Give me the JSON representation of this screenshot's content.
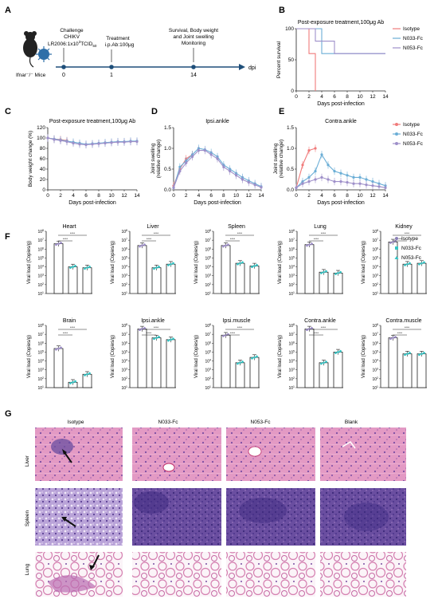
{
  "colors": {
    "isotype": "#f07b7b",
    "n033": "#6baed6",
    "n053": "#9e8fc9",
    "teal": "#35c3c3",
    "he_pink": "#d77fb0",
    "he_purple": "#6c4fa5"
  },
  "panel_labels": {
    "A": "A",
    "B": "B",
    "C": "C",
    "D": "D",
    "E": "E",
    "F": "F",
    "G": "G"
  },
  "timeline": {
    "challenge_line1": "Challenge",
    "challenge_line2": "CHIKV",
    "challenge_line3": "LR2006:1x10",
    "challenge_sup": "3",
    "challenge_unit": "TCID",
    "challenge_sub": "50",
    "treatment_line1": "Treatment",
    "treatment_line2": "i.p.Ab:100μg",
    "monitor_line1": "Survival, Body weight",
    "monitor_line2": "and Joint swelling",
    "monitor_line3": "Monitoring",
    "dpi": "dpi",
    "mice": "Ifnar⁻/⁻ Mice",
    "days": [
      "0",
      "1",
      "14"
    ]
  },
  "legend": {
    "isotype": "Isotype",
    "n033": "N033-Fc",
    "n053": "N053-Fc"
  },
  "chart_data": [
    {
      "id": "B",
      "type": "line",
      "title": "Post-exposure treatment,100μg Ab",
      "xlabel": "Days post-infection",
      "ylabel": "Percent survival",
      "xticks": [
        "0",
        "2",
        "4",
        "6",
        "8",
        "10",
        "12",
        "14"
      ],
      "yticks": [
        "0",
        "50",
        "100"
      ],
      "xlim": [
        0,
        14
      ],
      "ylim": [
        0,
        100
      ],
      "series": [
        {
          "name": "Isotype",
          "x": [
            0,
            2,
            2,
            3,
            3
          ],
          "y": [
            100,
            100,
            60,
            60,
            0
          ]
        },
        {
          "name": "N033-Fc",
          "x": [
            0,
            4,
            4,
            14
          ],
          "y": [
            100,
            100,
            60,
            60
          ]
        },
        {
          "name": "N053-Fc",
          "x": [
            0,
            3,
            3,
            6,
            6,
            14
          ],
          "y": [
            100,
            100,
            80,
            80,
            60,
            60
          ]
        }
      ]
    },
    {
      "id": "C",
      "type": "line",
      "title": "Post-exposure treatment,100μg Ab",
      "xlabel": "Days post-infection",
      "ylabel": "Body weight change (%)",
      "xticks": [
        "0",
        "2",
        "4",
        "6",
        "8",
        "10",
        "12",
        "14"
      ],
      "yticks": [
        "0",
        "20",
        "40",
        "60",
        "80",
        "100",
        "120"
      ],
      "xlim": [
        0,
        14
      ],
      "ylim": [
        0,
        120
      ],
      "series": [
        {
          "name": "Isotype",
          "x": [
            0,
            1,
            2,
            3
          ],
          "y": [
            100,
            98,
            97,
            95
          ]
        },
        {
          "name": "N033-Fc",
          "x": [
            0,
            1,
            2,
            3,
            4,
            5,
            6,
            7,
            8,
            9,
            10,
            11,
            12,
            13,
            14
          ],
          "y": [
            100,
            98,
            96,
            94,
            92,
            90,
            88,
            89,
            90,
            91,
            92,
            93,
            93,
            94,
            94
          ]
        },
        {
          "name": "N053-Fc",
          "x": [
            0,
            1,
            2,
            3,
            4,
            5,
            6,
            7,
            8,
            9,
            10,
            11,
            12,
            13,
            14
          ],
          "y": [
            100,
            97,
            95,
            93,
            90,
            88,
            87,
            88,
            89,
            90,
            91,
            92,
            92,
            93,
            93
          ]
        }
      ]
    },
    {
      "id": "D",
      "type": "line",
      "title": "Ipsi.ankle",
      "xlabel": "Days post-infection",
      "ylabel": "Joint swelling (relative change)",
      "xticks": [
        "0",
        "2",
        "4",
        "6",
        "8",
        "10",
        "12",
        "14"
      ],
      "yticks": [
        "0.0",
        "0.5",
        "1.0",
        "1.5"
      ],
      "xlim": [
        0,
        14
      ],
      "ylim": [
        0,
        1.5
      ],
      "series": [
        {
          "name": "Isotype",
          "x": [
            0,
            1,
            2,
            3
          ],
          "y": [
            0.1,
            0.5,
            0.75,
            0.85
          ]
        },
        {
          "name": "N033-Fc",
          "x": [
            0,
            1,
            2,
            3,
            4,
            5,
            6,
            7,
            8,
            9,
            10,
            11,
            12,
            13,
            14
          ],
          "y": [
            0.05,
            0.55,
            0.7,
            0.85,
            1.0,
            0.97,
            0.9,
            0.8,
            0.6,
            0.5,
            0.4,
            0.3,
            0.22,
            0.15,
            0.08
          ]
        },
        {
          "name": "N053-Fc",
          "x": [
            0,
            1,
            2,
            3,
            4,
            5,
            6,
            7,
            8,
            9,
            10,
            11,
            12,
            13,
            14
          ],
          "y": [
            0.05,
            0.45,
            0.65,
            0.8,
            0.95,
            0.95,
            0.85,
            0.75,
            0.55,
            0.45,
            0.35,
            0.25,
            0.18,
            0.12,
            0.06
          ]
        }
      ]
    },
    {
      "id": "E",
      "type": "line",
      "title": "Contra.ankle",
      "xlabel": "Days post-infection",
      "ylabel": "Joint swelling (relative change)",
      "xticks": [
        "0",
        "2",
        "4",
        "6",
        "8",
        "10",
        "12",
        "14"
      ],
      "yticks": [
        "0.0",
        "0.5",
        "1.0",
        "1.5"
      ],
      "xlim": [
        0,
        14
      ],
      "ylim": [
        0,
        1.5
      ],
      "series": [
        {
          "name": "Isotype",
          "x": [
            0,
            1,
            2,
            3
          ],
          "y": [
            0.05,
            0.6,
            0.95,
            1.0
          ]
        },
        {
          "name": "N033-Fc",
          "x": [
            0,
            1,
            2,
            3,
            4,
            5,
            6,
            7,
            8,
            9,
            10,
            11,
            12,
            13,
            14
          ],
          "y": [
            0.05,
            0.2,
            0.3,
            0.45,
            0.85,
            0.6,
            0.45,
            0.4,
            0.35,
            0.3,
            0.3,
            0.25,
            0.2,
            0.15,
            0.1
          ]
        },
        {
          "name": "N053-Fc",
          "x": [
            0,
            1,
            2,
            3,
            4,
            5,
            6,
            7,
            8,
            9,
            10,
            11,
            12,
            13,
            14
          ],
          "y": [
            0.05,
            0.15,
            0.2,
            0.25,
            0.3,
            0.25,
            0.2,
            0.2,
            0.18,
            0.15,
            0.15,
            0.12,
            0.1,
            0.08,
            0.05
          ]
        }
      ]
    },
    {
      "id": "F",
      "type": "bar",
      "ylabel": "Viral load (Copies/g)",
      "legend": [
        "Isotype",
        "N033-Fc",
        "N053-Fc"
      ],
      "sig": "****",
      "yticks_log": [
        1,
        2,
        3,
        4,
        5,
        6,
        7,
        8
      ],
      "organs": [
        {
          "name": "Heart",
          "values_log10": [
            6.6,
            4.0,
            3.9
          ]
        },
        {
          "name": "Liver",
          "values_log10": [
            6.4,
            3.9,
            4.3
          ]
        },
        {
          "name": "Spleen",
          "values_log10": [
            6.4,
            4.4,
            4.1
          ]
        },
        {
          "name": "Lung",
          "values_log10": [
            6.5,
            3.4,
            3.3
          ]
        },
        {
          "name": "Kidney",
          "values_log10": [
            6.8,
            4.3,
            4.4
          ]
        },
        {
          "name": "Brain",
          "values_log10": [
            5.4,
            1.6,
            2.5
          ]
        },
        {
          "name": "Ipsi.ankle",
          "values_log10": [
            7.6,
            6.6,
            6.4
          ]
        },
        {
          "name": "Ipsi.muscle",
          "values_log10": [
            6.9,
            3.8,
            4.4
          ]
        },
        {
          "name": "Contra.ankle",
          "values_log10": [
            7.6,
            3.8,
            5.0
          ]
        },
        {
          "name": "Contra.muscle",
          "values_log10": [
            6.6,
            4.8,
            4.8
          ]
        }
      ]
    }
  ],
  "histology": {
    "columns": [
      "Isotype",
      "N033-Fc",
      "N053-Fc",
      "Blank"
    ],
    "rows": [
      "Liver",
      "Spleen",
      "Lung"
    ]
  }
}
